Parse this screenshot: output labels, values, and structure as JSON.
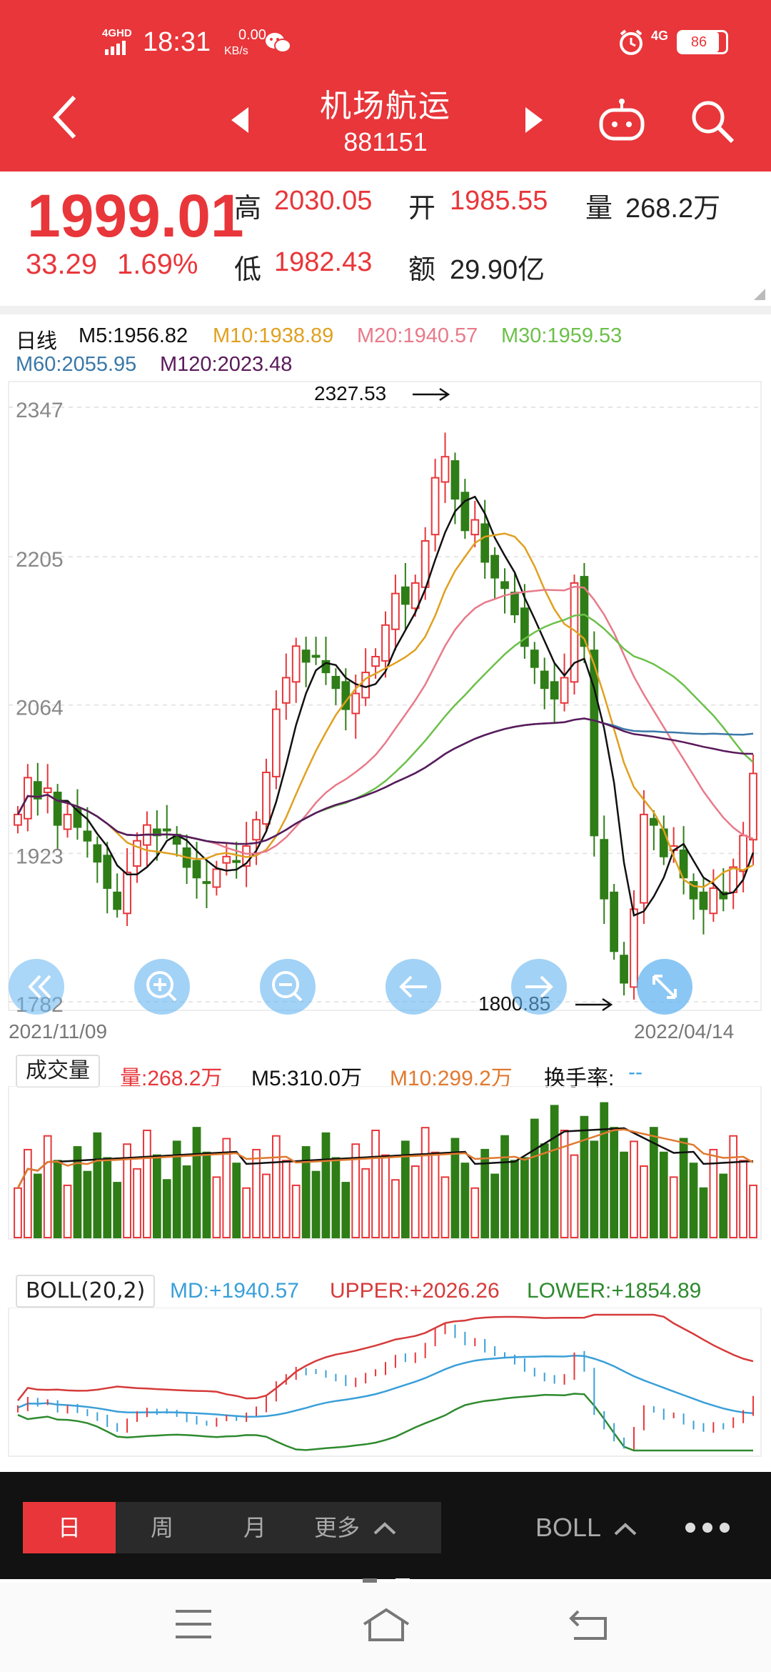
{
  "status_bar": {
    "time": "18:31",
    "net_speed": "0.00",
    "net_unit": "KB/s",
    "signal": "4GHD",
    "mobile": "4G",
    "battery": "86"
  },
  "header": {
    "title": "机场航运",
    "code": "881151"
  },
  "quote": {
    "price": "1999.01",
    "change": "33.29",
    "change_pct": "1.69%",
    "high_label": "高",
    "high": "2030.05",
    "low_label": "低",
    "low": "1982.43",
    "open_label": "开",
    "open": "1985.55",
    "amount_label": "额",
    "amount": "29.90亿",
    "volume_label": "量",
    "volume": "268.2万"
  },
  "kline": {
    "period": "日线",
    "ma": [
      {
        "label": "M5:1956.82",
        "color": "#111111"
      },
      {
        "label": "M10:1938.89",
        "color": "#e0a020"
      },
      {
        "label": "M20:1940.57",
        "color": "#e87a8a"
      },
      {
        "label": "M30:1959.53",
        "color": "#6cc04a"
      },
      {
        "label": "M60:2055.95",
        "color": "#3a78a8"
      },
      {
        "label": "M120:2023.48",
        "color": "#5a1a5a"
      }
    ],
    "y_ticks": [
      "2347",
      "2205",
      "2064",
      "1923",
      "1782"
    ],
    "max_label": "2327.53",
    "min_label": "1800.85",
    "date_start": "2021/11/09",
    "date_end": "2022/04/14"
  },
  "volume_panel": {
    "title": "成交量",
    "vol": "量:268.2万",
    "m5": "M5:310.0万",
    "m10": "M10:299.2万",
    "turnover": "换手率:",
    "turnover_val": "--"
  },
  "boll_panel": {
    "title": "BOLL(20,2)",
    "md": "MD:+1940.57",
    "upper": "UPPER:+2026.26",
    "lower": "LOWER:+1854.89"
  },
  "tabs": {
    "day": "日",
    "week": "周",
    "month": "月",
    "more": "更多",
    "indicator": "BOLL"
  },
  "chart_data": {
    "type": "candlestick",
    "x_range": [
      "2021/11/09",
      "2022/04/14"
    ],
    "ylim": [
      1782,
      2347
    ],
    "close": [
      1960,
      1995,
      1975,
      1985,
      1950,
      1960,
      1948,
      1935,
      1915,
      1890,
      1870,
      1905,
      1935,
      1950,
      1940,
      1945,
      1932,
      1910,
      1900,
      1895,
      1908,
      1920,
      1915,
      1930,
      1955,
      2000,
      2060,
      2090,
      2120,
      2105,
      2110,
      2095,
      2080,
      2060,
      2075,
      2095,
      2110,
      2140,
      2170,
      2160,
      2180,
      2220,
      2280,
      2300,
      2260,
      2230,
      2240,
      2200,
      2185,
      2175,
      2150,
      2120,
      2100,
      2080,
      2070,
      2090,
      2180,
      2120,
      1940,
      1880,
      1830,
      1800,
      1870,
      1960,
      1950,
      1920,
      1930,
      1900,
      1880,
      1870,
      1890,
      1880,
      1910,
      1940,
      1999
    ]
  }
}
